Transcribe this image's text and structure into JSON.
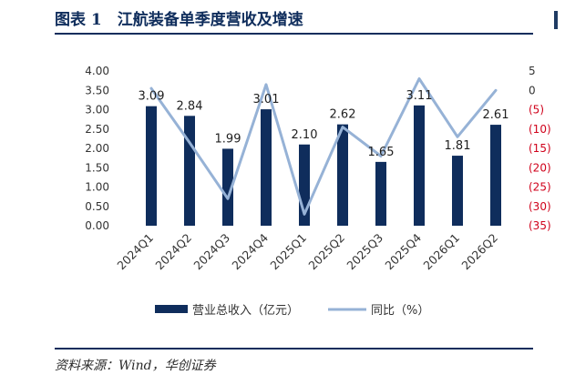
{
  "header": {
    "title": "图表 1　江航装备单季度营收及增速"
  },
  "source": {
    "text": "资料来源：Wind，华创证券"
  },
  "colors": {
    "bar": "#0f2d5c",
    "line": "#96b2d6",
    "negative_label": "#d0021b",
    "text": "#333333"
  },
  "chart_data": {
    "type": "bar",
    "categories": [
      "2024Q1",
      "2024Q2",
      "2024Q3",
      "2024Q4",
      "2025Q1",
      "2025Q2",
      "2025Q3",
      "2025Q4",
      "2026Q1",
      "2026Q2"
    ],
    "series": [
      {
        "name": "营业总收入（亿元）",
        "type": "bar",
        "axis": "left",
        "values": [
          3.09,
          2.84,
          1.99,
          3.01,
          2.1,
          2.62,
          1.65,
          3.11,
          1.81,
          2.61
        ],
        "data_labels": [
          "3.09",
          "2.84",
          "1.99",
          "3.01",
          "2.10",
          "2.62",
          "1.65",
          "3.11",
          "1.81",
          "2.61"
        ]
      },
      {
        "name": "同比（%）",
        "type": "line",
        "axis": "right",
        "values": [
          0.5,
          -13.5,
          -28,
          1.5,
          -32,
          -9.5,
          -17,
          3,
          -12,
          0
        ]
      }
    ],
    "y_left": {
      "range": [
        0,
        4
      ],
      "ticks": [
        "0.00",
        "0.50",
        "1.00",
        "1.50",
        "2.00",
        "2.50",
        "3.00",
        "3.50",
        "4.00"
      ]
    },
    "y_right": {
      "range": [
        -35,
        5
      ],
      "ticks": [
        {
          "value": 5,
          "label": "5"
        },
        {
          "value": 0,
          "label": "0"
        },
        {
          "value": -5,
          "label": "(5)"
        },
        {
          "value": -10,
          "label": "(10)"
        },
        {
          "value": -15,
          "label": "(15)"
        },
        {
          "value": -20,
          "label": "(20)"
        },
        {
          "value": -25,
          "label": "(25)"
        },
        {
          "value": -30,
          "label": "(30)"
        },
        {
          "value": -35,
          "label": "(35)"
        }
      ]
    },
    "grid": false,
    "legend": "bottom"
  }
}
